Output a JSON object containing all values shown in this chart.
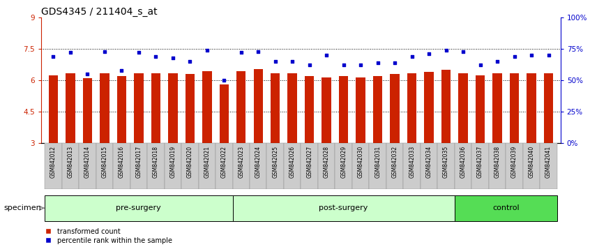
{
  "title": "GDS4345 / 211404_s_at",
  "samples": [
    "GSM842012",
    "GSM842013",
    "GSM842014",
    "GSM842015",
    "GSM842016",
    "GSM842017",
    "GSM842018",
    "GSM842019",
    "GSM842020",
    "GSM842021",
    "GSM842022",
    "GSM842023",
    "GSM842024",
    "GSM842025",
    "GSM842026",
    "GSM842027",
    "GSM842028",
    "GSM842029",
    "GSM842030",
    "GSM842031",
    "GSM842032",
    "GSM842033",
    "GSM842034",
    "GSM842035",
    "GSM842036",
    "GSM842037",
    "GSM842038",
    "GSM842039",
    "GSM842040",
    "GSM842041"
  ],
  "bar_values": [
    6.25,
    6.35,
    6.1,
    6.35,
    6.2,
    6.35,
    6.35,
    6.35,
    6.3,
    6.45,
    5.8,
    6.45,
    6.55,
    6.35,
    6.35,
    6.2,
    6.15,
    6.2,
    6.15,
    6.2,
    6.3,
    6.35,
    6.4,
    6.5,
    6.35,
    6.25,
    6.35,
    6.35,
    6.35,
    6.35
  ],
  "percentile_values": [
    69,
    72,
    55,
    73,
    58,
    72,
    69,
    68,
    65,
    74,
    50,
    72,
    73,
    65,
    65,
    62,
    70,
    62,
    62,
    64,
    64,
    69,
    71,
    74,
    73,
    62,
    65,
    69,
    70,
    70
  ],
  "groups": [
    {
      "label": "pre-surgery",
      "start": 0,
      "end": 11
    },
    {
      "label": "post-surgery",
      "start": 11,
      "end": 24
    },
    {
      "label": "control",
      "start": 24,
      "end": 30
    }
  ],
  "group_colors": [
    "#CCFFCC",
    "#CCFFCC",
    "#55DD55"
  ],
  "ylim_left": [
    3,
    9
  ],
  "ylim_right": [
    0,
    100
  ],
  "yticks_left": [
    3,
    4.5,
    6,
    7.5,
    9
  ],
  "ytick_labels_left": [
    "3",
    "4.5",
    "6",
    "7.5",
    "9"
  ],
  "yticks_right": [
    0,
    25,
    50,
    75,
    100
  ],
  "ytick_labels_right": [
    "0%",
    "25%",
    "50%",
    "75%",
    "100%"
  ],
  "bar_color": "#CC2200",
  "percentile_color": "#0000CC",
  "bar_bottom": 3.0,
  "gridline_values": [
    4.5,
    6.0,
    7.5
  ],
  "legend_items": [
    {
      "label": "transformed count",
      "color": "#CC2200"
    },
    {
      "label": "percentile rank within the sample",
      "color": "#0000CC"
    }
  ],
  "specimen_label": "specimen",
  "title_fontsize": 10,
  "tick_fontsize": 7.5,
  "axis_label_color_left": "#CC2200",
  "axis_label_color_right": "#0000CC",
  "xtick_bg_color": "#CCCCCC",
  "bar_width": 0.55
}
